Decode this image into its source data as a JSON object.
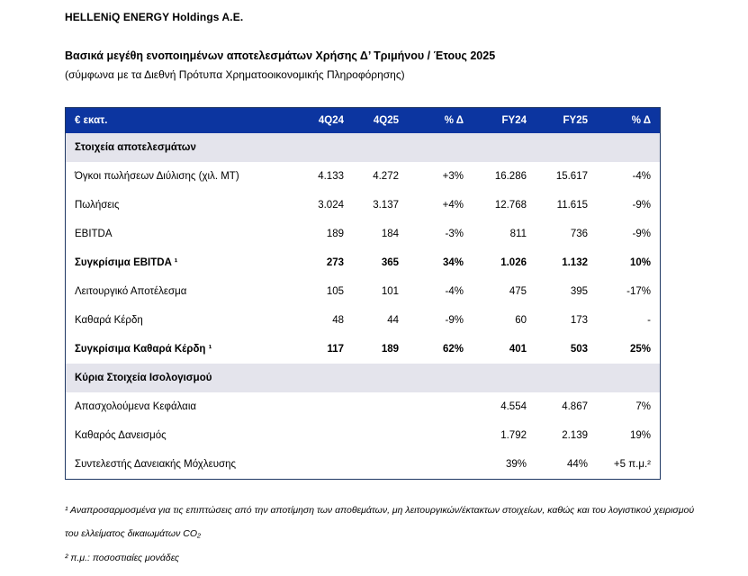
{
  "page": {
    "company": "HELLENiQ ENERGY Holdings A.E.",
    "title": "Βασικά μεγέθη ενοποιημένων αποτελεσμάτων Χρήσης Δ’ Τριμήνου / Έτους 2025",
    "subtitle": "(σύμφωνα με τα Διεθνή Πρότυπα Χρηματοοικονομικής Πληροφόρησης)"
  },
  "colors": {
    "header_bg": "#0C35A0",
    "section_bg": "#E4E4EC",
    "border": "#1F3864",
    "header_text": "#FFFFFF"
  },
  "table": {
    "unit_label": "€ εκατ.",
    "columns": [
      "4Q24",
      "4Q25",
      "% Δ",
      "FY24",
      "FY25",
      "% Δ"
    ],
    "sections": [
      {
        "title": "Στοιχεία αποτελεσμάτων",
        "rows": [
          {
            "label": "Όγκοι πωλήσεων Διύλισης (χιλ. ΜΤ)",
            "bold": false,
            "values": [
              "4.133",
              "4.272",
              "+3%",
              "16.286",
              "15.617",
              "-4%"
            ]
          },
          {
            "label": "Πωλήσεις",
            "bold": false,
            "values": [
              "3.024",
              "3.137",
              "+4%",
              "12.768",
              "11.615",
              "-9%"
            ]
          },
          {
            "label": "EBITDA",
            "bold": false,
            "values": [
              "189",
              "184",
              "-3%",
              "811",
              "736",
              "-9%"
            ]
          },
          {
            "label": "Συγκρίσιμα EBITDA ¹",
            "bold": true,
            "values": [
              "273",
              "365",
              "34%",
              "1.026",
              "1.132",
              "10%"
            ]
          },
          {
            "label": "Λειτουργικό Αποτέλεσμα",
            "bold": false,
            "values": [
              "105",
              "101",
              "-4%",
              "475",
              "395",
              "-17%"
            ]
          },
          {
            "label": "Καθαρά Κέρδη",
            "bold": false,
            "values": [
              "48",
              "44",
              "-9%",
              "60",
              "173",
              "-"
            ]
          },
          {
            "label": "Συγκρίσιμα Καθαρά Κέρδη ¹",
            "bold": true,
            "values": [
              "117",
              "189",
              "62%",
              "401",
              "503",
              "25%"
            ]
          }
        ]
      },
      {
        "title": "Κύρια Στοιχεία Ισολογισμού",
        "rows": [
          {
            "label": "Απασχολούμενα Κεφάλαια",
            "bold": false,
            "values": [
              "",
              "",
              "",
              "4.554",
              "4.867",
              "7%"
            ]
          },
          {
            "label": "Καθαρός Δανεισμός",
            "bold": false,
            "values": [
              "",
              "",
              "",
              "1.792",
              "2.139",
              "19%"
            ]
          },
          {
            "label": "Συντελεστής Δανειακής Μόχλευσης",
            "bold": false,
            "values": [
              "",
              "",
              "",
              "39%",
              "44%",
              "+5 π.μ.²"
            ]
          }
        ]
      }
    ]
  },
  "footnotes": [
    "¹ Αναπροσαρμοσμένα για τις επιπτώσεις από την αποτίμηση των αποθεμάτων, μη λειτουργικών/έκτακτων στοιχείων, καθώς και του λογιστικού χειρισμού του ελλείματος δικαιωμάτων CO₂",
    "² π.μ.: ποσοστιαίες μονάδες"
  ]
}
